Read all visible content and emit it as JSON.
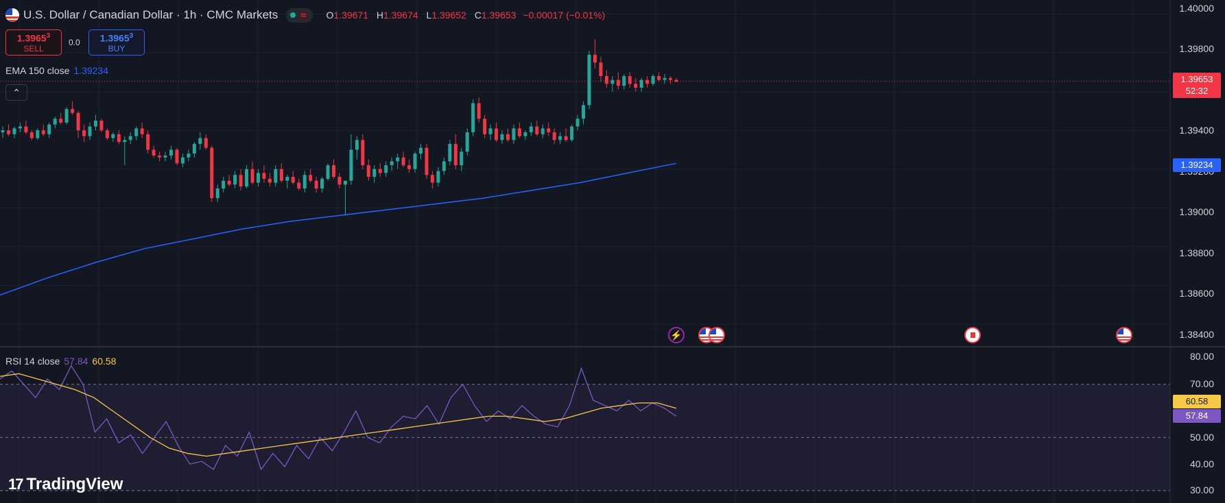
{
  "header": {
    "symbol_title": "U.S. Dollar / Canadian Dollar · 1h · CMC Markets",
    "ohlc": {
      "open_label": "O",
      "open": "1.39671",
      "high_label": "H",
      "high": "1.39674",
      "low_label": "L",
      "low": "1.39652",
      "close_label": "C",
      "close": "1.39653",
      "change": "−0.00017 (−0.01%)"
    }
  },
  "trade": {
    "sell_price_main": "1.3965",
    "sell_price_pip": "3",
    "sell_label": "SELL",
    "buy_price_main": "1.3965",
    "buy_price_pip": "3",
    "buy_label": "BUY",
    "spread": "0.0"
  },
  "ema_legend": {
    "label": "EMA 150 close",
    "value": "1.39234"
  },
  "rsi_legend": {
    "label": "RSI 14 close",
    "rsi_value": "57.84",
    "ma_value": "60.58"
  },
  "price_axis": {
    "labels": [
      "1.40000",
      "1.39800",
      "1.39400",
      "1.39200",
      "1.39000",
      "1.38800",
      "1.38600",
      "1.38400"
    ],
    "current_price": "1.39653",
    "countdown": "52:32",
    "ema_tag": "1.39234"
  },
  "rsi_axis": {
    "labels": [
      "80.00",
      "70.00",
      "60.00",
      "50.00",
      "40.00",
      "30.00"
    ],
    "ma_tag": "60.58",
    "rsi_tag": "57.84"
  },
  "brand": {
    "name": "TradingView"
  },
  "colors": {
    "background": "#131722",
    "up": "#26a69a",
    "down": "#f23645",
    "ema": "#2962ff",
    "rsi": "#7e57c2",
    "rsi_ma": "#f7c948",
    "grid": "#1e222d"
  },
  "chart_data": [
    {
      "type": "line",
      "title": "",
      "series": [
        {
          "name": "EMA 150 close",
          "values": [
            1.3855,
            1.3864,
            1.3872,
            1.3879,
            1.3884,
            1.3889,
            1.3893,
            1.3896,
            1.3899,
            1.3902,
            1.3905,
            1.3909,
            1.3913,
            1.3918,
            1.3923
          ]
        }
      ],
      "candles": [
        [
          1.3939,
          1.3942,
          1.3936,
          1.394
        ],
        [
          1.394,
          1.3943,
          1.3937,
          1.3938
        ],
        [
          1.3938,
          1.3942,
          1.3936,
          1.3941
        ],
        [
          1.3941,
          1.3944,
          1.3939,
          1.3942
        ],
        [
          1.3942,
          1.3945,
          1.3938,
          1.3939
        ],
        [
          1.3939,
          1.394,
          1.3935,
          1.3936
        ],
        [
          1.3936,
          1.3941,
          1.3935,
          1.394
        ],
        [
          1.394,
          1.3943,
          1.3937,
          1.3938
        ],
        [
          1.3938,
          1.3944,
          1.3936,
          1.3943
        ],
        [
          1.3943,
          1.3947,
          1.3941,
          1.3946
        ],
        [
          1.3946,
          1.3949,
          1.3943,
          1.3944
        ],
        [
          1.3944,
          1.3952,
          1.3943,
          1.3951
        ],
        [
          1.3951,
          1.3955,
          1.3948,
          1.3949
        ],
        [
          1.3949,
          1.395,
          1.3936,
          1.394
        ],
        [
          1.394,
          1.3943,
          1.3934,
          1.3937
        ],
        [
          1.3937,
          1.3944,
          1.3935,
          1.3942
        ],
        [
          1.3942,
          1.3948,
          1.394,
          1.3945
        ],
        [
          1.3945,
          1.3946,
          1.3939,
          1.394
        ],
        [
          1.394,
          1.3941,
          1.3935,
          1.3936
        ],
        [
          1.3936,
          1.3939,
          1.3934,
          1.3938
        ],
        [
          1.3938,
          1.394,
          1.3933,
          1.3934
        ],
        [
          1.3934,
          1.3937,
          1.3922,
          1.3935
        ],
        [
          1.3935,
          1.3939,
          1.3933,
          1.3937
        ],
        [
          1.3937,
          1.3942,
          1.3935,
          1.3941
        ],
        [
          1.3941,
          1.3944,
          1.3936,
          1.3938
        ],
        [
          1.3938,
          1.394,
          1.3928,
          1.393
        ],
        [
          1.393,
          1.3932,
          1.3926,
          1.3927
        ],
        [
          1.3927,
          1.3929,
          1.3924,
          1.3926
        ],
        [
          1.3926,
          1.3929,
          1.3924,
          1.3927
        ],
        [
          1.3927,
          1.3932,
          1.3925,
          1.393
        ],
        [
          1.393,
          1.3931,
          1.3922,
          1.3923
        ],
        [
          1.3923,
          1.3928,
          1.3921,
          1.3926
        ],
        [
          1.3926,
          1.393,
          1.3924,
          1.3928
        ],
        [
          1.3928,
          1.3934,
          1.3926,
          1.3933
        ],
        [
          1.3933,
          1.3939,
          1.393,
          1.3936
        ],
        [
          1.3936,
          1.3938,
          1.393,
          1.3931
        ],
        [
          1.3931,
          1.3932,
          1.3903,
          1.3905
        ],
        [
          1.3905,
          1.3912,
          1.3903,
          1.391
        ],
        [
          1.391,
          1.3916,
          1.3908,
          1.3914
        ],
        [
          1.3914,
          1.3917,
          1.3911,
          1.3912
        ],
        [
          1.3912,
          1.3919,
          1.391,
          1.3917
        ],
        [
          1.3917,
          1.392,
          1.3909,
          1.3911
        ],
        [
          1.3911,
          1.3922,
          1.391,
          1.392
        ],
        [
          1.392,
          1.3924,
          1.3912,
          1.3913
        ],
        [
          1.3913,
          1.392,
          1.3911,
          1.3918
        ],
        [
          1.3918,
          1.3922,
          1.3913,
          1.3915
        ],
        [
          1.3915,
          1.3918,
          1.3911,
          1.3913
        ],
        [
          1.3913,
          1.3922,
          1.3911,
          1.392
        ],
        [
          1.392,
          1.3923,
          1.3913,
          1.3914
        ],
        [
          1.3914,
          1.3917,
          1.391,
          1.3916
        ],
        [
          1.3916,
          1.3919,
          1.3912,
          1.3913
        ],
        [
          1.3913,
          1.3915,
          1.3909,
          1.391
        ],
        [
          1.391,
          1.3919,
          1.3908,
          1.3917
        ],
        [
          1.3917,
          1.392,
          1.3913,
          1.3914
        ],
        [
          1.3914,
          1.3916,
          1.3908,
          1.391
        ],
        [
          1.391,
          1.3916,
          1.3908,
          1.3915
        ],
        [
          1.3915,
          1.3923,
          1.3914,
          1.3922
        ],
        [
          1.3922,
          1.3925,
          1.3915,
          1.3916
        ],
        [
          1.3916,
          1.3918,
          1.391,
          1.3912
        ],
        [
          1.3912,
          1.3914,
          1.3896,
          1.3914
        ],
        [
          1.3914,
          1.3938,
          1.3912,
          1.393
        ],
        [
          1.393,
          1.3937,
          1.3925,
          1.3935
        ],
        [
          1.3935,
          1.3938,
          1.392,
          1.3922
        ],
        [
          1.3922,
          1.3925,
          1.3914,
          1.3916
        ],
        [
          1.3916,
          1.3922,
          1.3913,
          1.392
        ],
        [
          1.392,
          1.3923,
          1.3916,
          1.3918
        ],
        [
          1.3918,
          1.3924,
          1.3916,
          1.3922
        ],
        [
          1.3922,
          1.3926,
          1.3919,
          1.3924
        ],
        [
          1.3924,
          1.3928,
          1.392,
          1.3926
        ],
        [
          1.3926,
          1.3929,
          1.3921,
          1.3922
        ],
        [
          1.3922,
          1.3925,
          1.3918,
          1.392
        ],
        [
          1.392,
          1.3929,
          1.3918,
          1.3928
        ],
        [
          1.3928,
          1.3933,
          1.3925,
          1.3931
        ],
        [
          1.3931,
          1.3933,
          1.3915,
          1.3917
        ],
        [
          1.3917,
          1.3919,
          1.391,
          1.3913
        ],
        [
          1.3913,
          1.3921,
          1.3911,
          1.3919
        ],
        [
          1.3919,
          1.3926,
          1.3917,
          1.3924
        ],
        [
          1.3924,
          1.3935,
          1.3922,
          1.3933
        ],
        [
          1.3933,
          1.3938,
          1.392,
          1.3922
        ],
        [
          1.3922,
          1.3931,
          1.3919,
          1.3929
        ],
        [
          1.3929,
          1.3941,
          1.3927,
          1.3939
        ],
        [
          1.3939,
          1.3956,
          1.3937,
          1.3954
        ],
        [
          1.3954,
          1.3957,
          1.3944,
          1.3946
        ],
        [
          1.3946,
          1.3948,
          1.3936,
          1.3938
        ],
        [
          1.3938,
          1.3943,
          1.3935,
          1.3941
        ],
        [
          1.3941,
          1.3944,
          1.3934,
          1.3935
        ],
        [
          1.3935,
          1.394,
          1.3933,
          1.3938
        ],
        [
          1.3938,
          1.3941,
          1.3934,
          1.3935
        ],
        [
          1.3935,
          1.3943,
          1.3933,
          1.3941
        ],
        [
          1.3941,
          1.3944,
          1.3936,
          1.3937
        ],
        [
          1.3937,
          1.394,
          1.3935,
          1.3939
        ],
        [
          1.3939,
          1.3944,
          1.3937,
          1.3942
        ],
        [
          1.3942,
          1.3945,
          1.3937,
          1.3938
        ],
        [
          1.3938,
          1.3943,
          1.3936,
          1.3941
        ],
        [
          1.3941,
          1.3944,
          1.3937,
          1.3939
        ],
        [
          1.3939,
          1.3941,
          1.3933,
          1.3935
        ],
        [
          1.3935,
          1.3939,
          1.3933,
          1.3937
        ],
        [
          1.3937,
          1.3941,
          1.3934,
          1.3935
        ],
        [
          1.3935,
          1.3943,
          1.3934,
          1.3942
        ],
        [
          1.3942,
          1.3948,
          1.394,
          1.3946
        ],
        [
          1.3946,
          1.3955,
          1.3943,
          1.3953
        ],
        [
          1.3953,
          1.3981,
          1.3951,
          1.3979
        ],
        [
          1.3979,
          1.3987,
          1.3972,
          1.3975
        ],
        [
          1.3975,
          1.3978,
          1.3965,
          1.3968
        ],
        [
          1.3968,
          1.3971,
          1.3962,
          1.3964
        ],
        [
          1.3964,
          1.3968,
          1.396,
          1.3966
        ],
        [
          1.3966,
          1.397,
          1.3961,
          1.3963
        ],
        [
          1.3963,
          1.3969,
          1.3961,
          1.3968
        ],
        [
          1.3968,
          1.397,
          1.3962,
          1.3964
        ],
        [
          1.3964,
          1.3967,
          1.396,
          1.3962
        ],
        [
          1.3962,
          1.3967,
          1.396,
          1.3966
        ],
        [
          1.3966,
          1.3968,
          1.3962,
          1.3964
        ],
        [
          1.3964,
          1.3969,
          1.3963,
          1.3968
        ],
        [
          1.3968,
          1.397,
          1.3965,
          1.3966
        ],
        [
          1.3966,
          1.3969,
          1.3964,
          1.3967
        ],
        [
          1.3967,
          1.3968,
          1.3964,
          1.3966
        ],
        [
          1.3966,
          1.3967,
          1.3965,
          1.3965
        ]
      ],
      "ylim": [
        1.3834,
        1.4003
      ]
    },
    {
      "type": "line",
      "title": "",
      "series": [
        {
          "name": "RSI 14 close",
          "values": [
            72,
            75,
            70,
            65,
            72,
            68,
            77,
            70,
            52,
            57,
            48,
            51,
            44,
            50,
            56,
            47,
            40,
            41,
            38,
            47,
            43,
            52,
            38,
            44,
            39,
            47,
            42,
            50,
            45,
            52,
            60,
            50,
            48,
            54,
            58,
            57,
            62,
            55,
            65,
            70,
            62,
            56,
            60,
            57,
            62,
            58,
            55,
            54,
            62,
            76,
            64,
            62,
            60,
            64,
            60,
            63,
            61,
            58
          ]
        },
        {
          "name": "RSI MA",
          "values": [
            73,
            74,
            72,
            70,
            68,
            65,
            60,
            55,
            50,
            46,
            44,
            43,
            44,
            45,
            46,
            47,
            48,
            49,
            50,
            51,
            52,
            53,
            54,
            55,
            56,
            57,
            58,
            58,
            57,
            56,
            57,
            59,
            61,
            62,
            63,
            63,
            61
          ]
        }
      ],
      "ylim": [
        30,
        80
      ]
    }
  ]
}
